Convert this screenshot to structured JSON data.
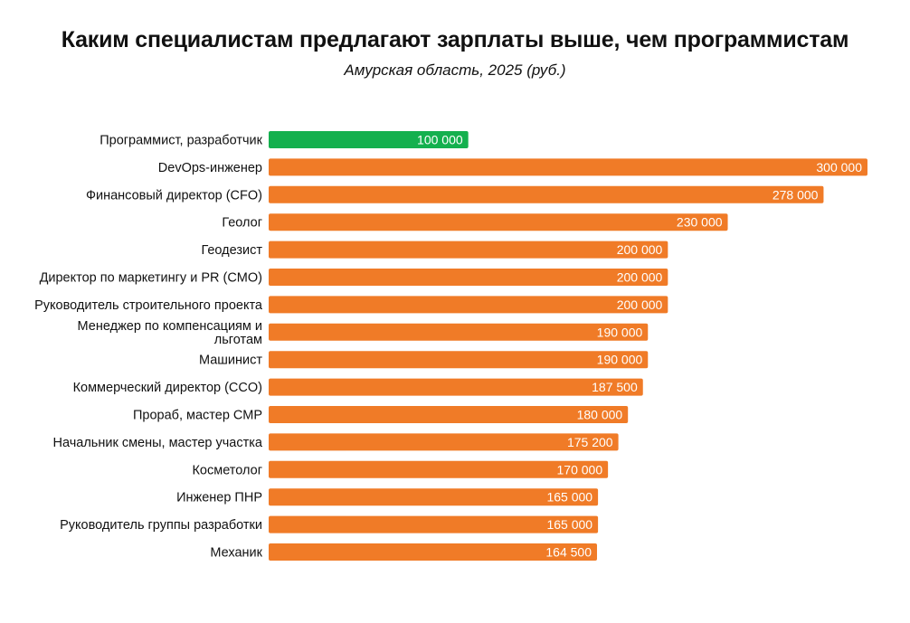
{
  "title": "Каким специалистам предлагают зарплаты выше, чем программистам",
  "subtitle": "Амурская область, 2025 (руб.)",
  "colors": {
    "highlight": "#14b04e",
    "bar": "#f07b27",
    "text": "#111111",
    "value_text": "#ffffff"
  },
  "chart_data": {
    "type": "bar",
    "orientation": "horizontal",
    "title": "Каким специалистам предлагают зарплаты выше, чем программистам",
    "subtitle": "Амурская область, 2025 (руб.)",
    "xlabel": "",
    "ylabel": "",
    "xlim": [
      0,
      300000
    ],
    "grid": false,
    "categories": [
      "Программист, разработчик",
      "DevOps-инженер",
      "Финансовый директор (CFO)",
      "Геолог",
      "Геодезист",
      "Директор по маркетингу и PR (CMO)",
      "Руководитель строительного проекта",
      "Менеджер по компенсациям и льготам",
      "Машинист",
      "Коммерческий директор (CCO)",
      "Прораб, мастер СМР",
      "Начальник смены, мастер участка",
      "Косметолог",
      "Инженер ПНР",
      "Руководитель группы разработки",
      "Механик"
    ],
    "label_lines": [
      [
        "Программист, разработчик"
      ],
      [
        "DevOps-инженер"
      ],
      [
        "Финансовый директор (CFO)"
      ],
      [
        "Геолог"
      ],
      [
        "Геодезист"
      ],
      [
        "Директор по маркетингу и PR (CMO)"
      ],
      [
        "Руководитель строительного проекта"
      ],
      [
        "Менеджер по компенсациям и",
        "льготам"
      ],
      [
        "Машинист"
      ],
      [
        "Коммерческий директор (CCO)"
      ],
      [
        "Прораб, мастер СМР"
      ],
      [
        "Начальник смены, мастер участка"
      ],
      [
        "Косметолог"
      ],
      [
        "Инженер ПНР"
      ],
      [
        "Руководитель группы разработки"
      ],
      [
        "Механик"
      ]
    ],
    "values": [
      100000,
      300000,
      278000,
      230000,
      200000,
      200000,
      200000,
      190000,
      190000,
      187500,
      180000,
      175200,
      170000,
      165000,
      165000,
      164500
    ],
    "value_labels": [
      "100 000",
      "300 000",
      "278 000",
      "230 000",
      "200 000",
      "200 000",
      "200 000",
      "190 000",
      "190 000",
      "187 500",
      "180 000",
      "175 200",
      "170 000",
      "165 000",
      "165 000",
      "164 500"
    ],
    "highlight_index": 0
  }
}
